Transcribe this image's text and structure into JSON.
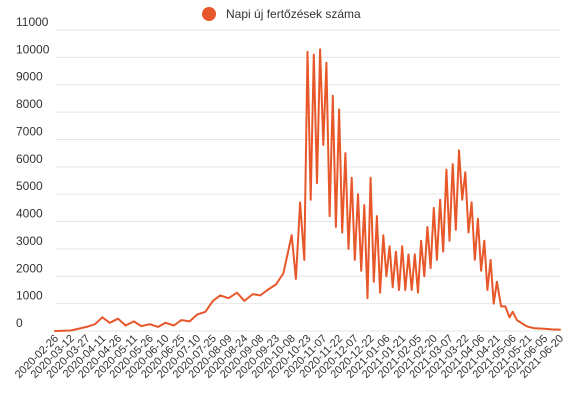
{
  "chart_data": {
    "type": "line",
    "legend": {
      "position": "top-center"
    },
    "grid": true,
    "ylim": [
      0,
      11000
    ],
    "y_ticks": [
      0,
      1000,
      2000,
      3000,
      4000,
      5000,
      6000,
      7000,
      8000,
      9000,
      10000,
      11000
    ],
    "x_ticks": [
      "2020-02-26",
      "2020-03-12",
      "2020-03-27",
      "2020-04-11",
      "2020-04-26",
      "2020-05-11",
      "2020-05-26",
      "2020-06-10",
      "2020-06-25",
      "2020-07-10",
      "2020-07-25",
      "2020-08-09",
      "2020-08-24",
      "2020-09-08",
      "2020-09-23",
      "2020-10-08",
      "2020-10-23",
      "2020-11-07",
      "2020-11-22",
      "2020-12-07",
      "2020-12-22",
      "2021-01-06",
      "2021-01-21",
      "2021-02-05",
      "2021-02-20",
      "2021-03-07",
      "2021-03-22",
      "2021-04-06",
      "2021-04-21",
      "2021-05-06",
      "2021-05-21",
      "2021-06-05",
      "2021-06-20"
    ],
    "series": [
      {
        "name": "Napi új fertőzések száma",
        "color": "#e8572a",
        "x": [
          "2020-02-26",
          "2020-03-12",
          "2020-03-27",
          "2020-04-04",
          "2020-04-11",
          "2020-04-18",
          "2020-04-26",
          "2020-05-03",
          "2020-05-11",
          "2020-05-18",
          "2020-05-26",
          "2020-06-03",
          "2020-06-10",
          "2020-06-18",
          "2020-06-25",
          "2020-07-03",
          "2020-07-10",
          "2020-07-18",
          "2020-07-25",
          "2020-08-01",
          "2020-08-09",
          "2020-08-17",
          "2020-08-24",
          "2020-09-01",
          "2020-09-08",
          "2020-09-15",
          "2020-09-23",
          "2020-09-30",
          "2020-10-08",
          "2020-10-12",
          "2020-10-16",
          "2020-10-20",
          "2020-10-23",
          "2020-10-26",
          "2020-10-29",
          "2020-11-01",
          "2020-11-04",
          "2020-11-07",
          "2020-11-10",
          "2020-11-13",
          "2020-11-16",
          "2020-11-19",
          "2020-11-22",
          "2020-11-25",
          "2020-11-28",
          "2020-12-01",
          "2020-12-04",
          "2020-12-07",
          "2020-12-10",
          "2020-12-13",
          "2020-12-16",
          "2020-12-19",
          "2020-12-22",
          "2020-12-25",
          "2020-12-28",
          "2020-12-31",
          "2021-01-03",
          "2021-01-06",
          "2021-01-09",
          "2021-01-12",
          "2021-01-15",
          "2021-01-18",
          "2021-01-21",
          "2021-01-24",
          "2021-01-27",
          "2021-01-30",
          "2021-02-02",
          "2021-02-05",
          "2021-02-08",
          "2021-02-11",
          "2021-02-14",
          "2021-02-17",
          "2021-02-20",
          "2021-02-23",
          "2021-02-26",
          "2021-03-01",
          "2021-03-04",
          "2021-03-07",
          "2021-03-10",
          "2021-03-13",
          "2021-03-16",
          "2021-03-19",
          "2021-03-22",
          "2021-03-25",
          "2021-03-28",
          "2021-03-31",
          "2021-04-03",
          "2021-04-06",
          "2021-04-09",
          "2021-04-12",
          "2021-04-15",
          "2021-04-18",
          "2021-04-21",
          "2021-04-25",
          "2021-04-29",
          "2021-05-03",
          "2021-05-06",
          "2021-05-10",
          "2021-05-14",
          "2021-05-18",
          "2021-05-21",
          "2021-05-27",
          "2021-06-05",
          "2021-06-12",
          "2021-06-20"
        ],
        "values": [
          0,
          20,
          150,
          250,
          500,
          300,
          450,
          200,
          350,
          180,
          250,
          150,
          300,
          200,
          400,
          350,
          600,
          700,
          1100,
          1300,
          1200,
          1400,
          1100,
          1350,
          1300,
          1500,
          1700,
          2100,
          3500,
          1900,
          4700,
          2600,
          10200,
          4800,
          10100,
          5400,
          10300,
          6800,
          9800,
          4200,
          8600,
          3800,
          8100,
          3600,
          6500,
          3000,
          5600,
          2600,
          5000,
          2200,
          4600,
          1200,
          5600,
          1800,
          4200,
          1400,
          3500,
          2000,
          3100,
          1600,
          2900,
          1500,
          3100,
          1500,
          2800,
          1500,
          2800,
          1400,
          3300,
          2000,
          3800,
          2300,
          4500,
          2600,
          4800,
          2900,
          5900,
          3300,
          6100,
          3700,
          6600,
          4800,
          5800,
          3600,
          4700,
          2600,
          4100,
          2200,
          3300,
          1500,
          2600,
          1000,
          1800,
          900,
          900,
          500,
          700,
          400,
          300,
          200,
          150,
          100,
          80,
          60,
          50
        ]
      }
    ]
  }
}
